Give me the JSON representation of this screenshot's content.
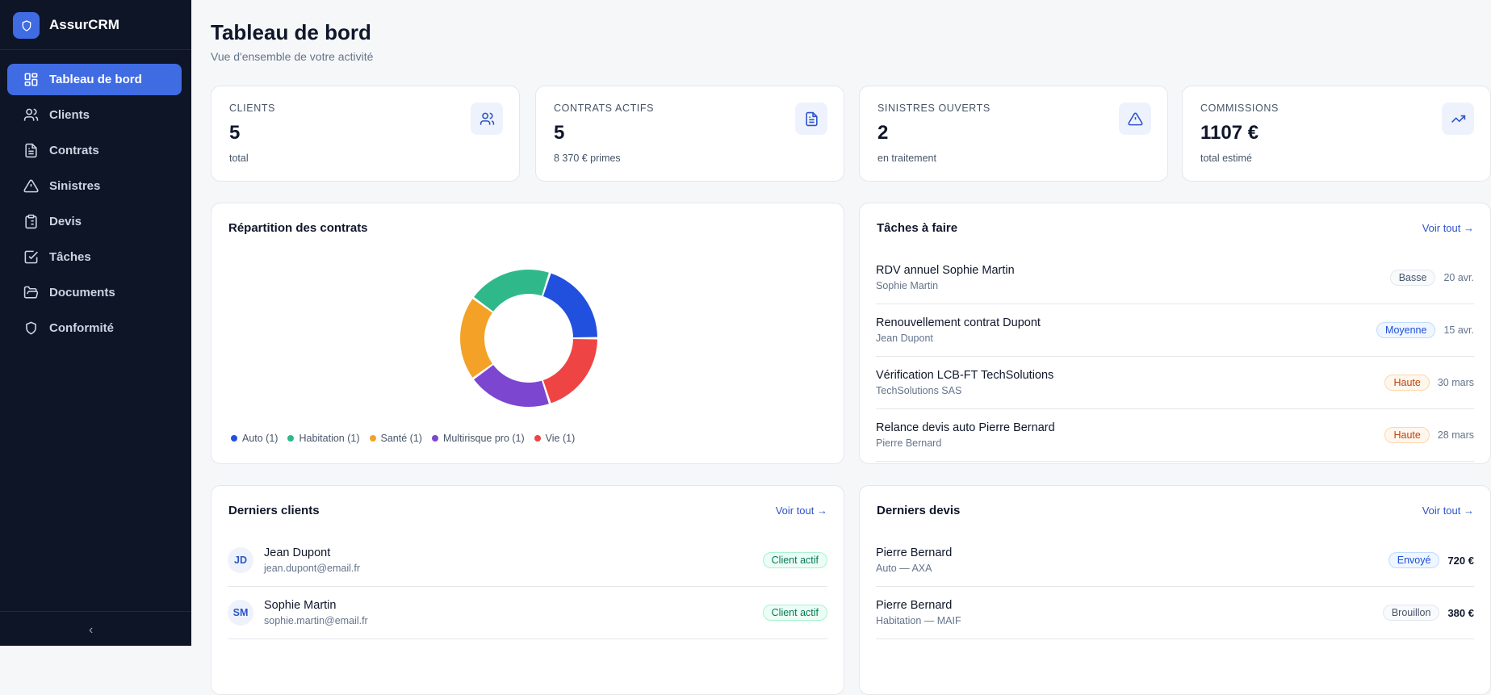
{
  "app": {
    "name": "AssurCRM"
  },
  "sidebar": {
    "items": [
      {
        "label": "Tableau de bord",
        "icon": "grid-icon",
        "active": true
      },
      {
        "label": "Clients",
        "icon": "users-icon"
      },
      {
        "label": "Contrats",
        "icon": "file-text-icon"
      },
      {
        "label": "Sinistres",
        "icon": "alert-triangle-icon"
      },
      {
        "label": "Devis",
        "icon": "clipboard-list-icon"
      },
      {
        "label": "Tâches",
        "icon": "check-square-icon"
      },
      {
        "label": "Documents",
        "icon": "folder-open-icon"
      },
      {
        "label": "Conformité",
        "icon": "shield-icon"
      }
    ],
    "collapse": "‹"
  },
  "header": {
    "title": "Tableau de bord",
    "subtitle": "Vue d'ensemble de votre activité"
  },
  "stats": [
    {
      "label": "CLIENTS",
      "value": "5",
      "sub": "total",
      "icon": "users-icon"
    },
    {
      "label": "CONTRATS ACTIFS",
      "value": "5",
      "sub": "8 370 € primes",
      "icon": "file-text-icon"
    },
    {
      "label": "SINISTRES OUVERTS",
      "value": "2",
      "sub": "en traitement",
      "icon": "alert-triangle-icon"
    },
    {
      "label": "COMMISSIONS",
      "value": "1107 €",
      "sub": "total estimé",
      "icon": "trending-up-icon"
    }
  ],
  "repartition": {
    "title": "Répartition des contrats"
  },
  "chart_data": {
    "type": "pie",
    "variant": "donut",
    "categories": [
      "Auto",
      "Habitation",
      "Santé",
      "Multirisque pro",
      "Vie"
    ],
    "values": [
      1,
      1,
      1,
      1,
      1
    ],
    "legend_labels": [
      "Auto (1)",
      "Habitation (1)",
      "Santé (1)",
      "Multirisque pro (1)",
      "Vie (1)"
    ],
    "colors": [
      "#2250de",
      "#2fb98a",
      "#f4a227",
      "#7c46d1",
      "#ef4444"
    ],
    "legend": "bottom-left"
  },
  "taches": {
    "title": "Tâches à faire",
    "voir_tout": "Voir tout →",
    "items": [
      {
        "title": "RDV annuel Sophie Martin",
        "sub": "Sophie Martin",
        "priority": "Basse",
        "date": "20 avr."
      },
      {
        "title": "Renouvellement contrat Dupont",
        "sub": "Jean Dupont",
        "priority": "Moyenne",
        "date": "15 avr."
      },
      {
        "title": "Vérification LCB-FT TechSolutions",
        "sub": "TechSolutions SAS",
        "priority": "Haute",
        "date": "30 mars"
      },
      {
        "title": "Relance devis auto Pierre Bernard",
        "sub": "Pierre Bernard",
        "priority": "Haute",
        "date": "28 mars"
      }
    ]
  },
  "clients": {
    "title": "Derniers clients",
    "voir_tout": "Voir tout →",
    "items": [
      {
        "initials": "JD",
        "name": "Jean Dupont",
        "email": "jean.dupont@email.fr",
        "status": "Client actif"
      },
      {
        "initials": "SM",
        "name": "Sophie Martin",
        "email": "sophie.martin@email.fr",
        "status": "Client actif"
      }
    ]
  },
  "devis": {
    "title": "Derniers devis",
    "voir_tout": "Voir tout →",
    "items": [
      {
        "name": "Pierre Bernard",
        "sub": "Auto — AXA",
        "status": "Envoyé",
        "price": "720 €"
      },
      {
        "name": "Pierre Bernard",
        "sub": "Habitation — MAIF",
        "status": "Brouillon",
        "price": "380 €"
      }
    ]
  }
}
